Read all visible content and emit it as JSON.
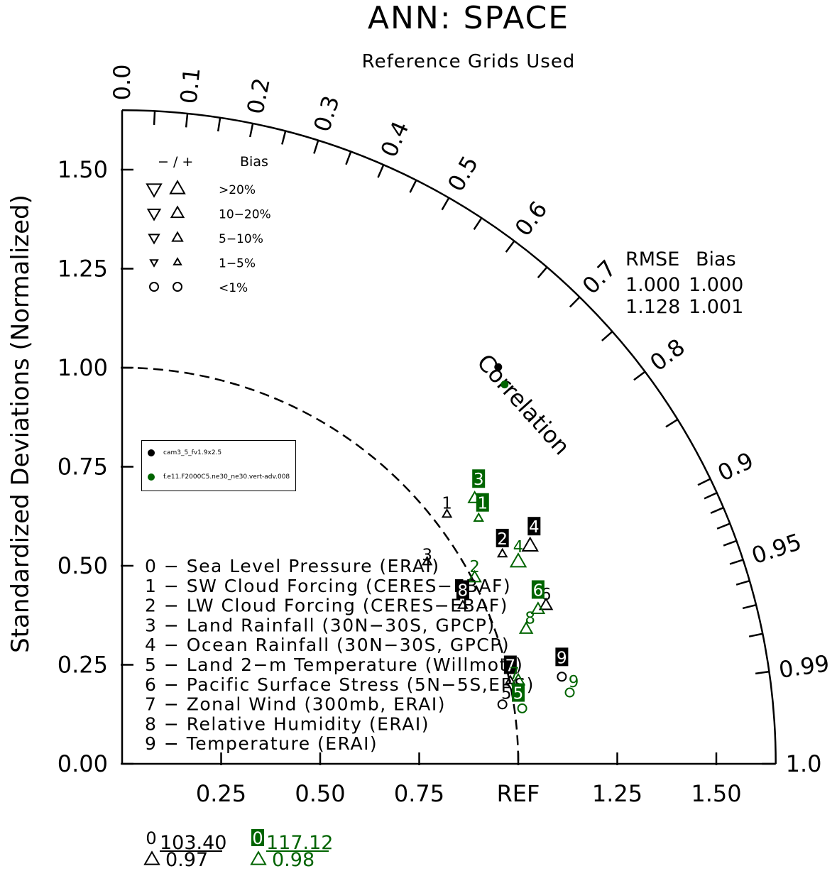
{
  "chart_data": {
    "type": "scatter",
    "title": "ANN: SPACE",
    "subtitle": "Reference Grids Used",
    "ylabel": "Standardized Deviations (Normalized)",
    "arc_label": "Correlation",
    "x_ticks": [
      "0.25",
      "0.50",
      "0.75",
      "REF",
      "1.25",
      "1.50"
    ],
    "y_ticks": [
      "0.00",
      "0.25",
      "0.50",
      "0.75",
      "1.00",
      "1.25",
      "1.50"
    ],
    "corr_ticks": [
      "0.0",
      "0.1",
      "0.2",
      "0.3",
      "0.4",
      "0.5",
      "0.6",
      "0.7",
      "0.8",
      "0.9",
      "0.95",
      "0.99",
      "1.0"
    ],
    "ref_radius": 1.0,
    "max_radius": 1.65,
    "cases": [
      {
        "name": "cam3_5_fv1.9x2.5",
        "color": "#000000"
      },
      {
        "name": "f.e11.F2000C5.ne30_ne30.vert-adv.008",
        "color": "#006400"
      }
    ],
    "stats_header": [
      "RMSE",
      "Bias"
    ],
    "case_stats": [
      {
        "rmse": "1.000",
        "bias": "1.000",
        "corr": 0.688,
        "std": 1.38
      },
      {
        "rmse": "1.128",
        "bias": "1.001",
        "corr": 0.71,
        "std": 1.36
      }
    ],
    "bias_legend": {
      "header": [
        "− / +",
        "Bias"
      ],
      "rows": [
        ">20%",
        "10−20%",
        "5−10%",
        "1−5%",
        "<1%"
      ]
    },
    "variables": [
      "0 − Sea Level Pressure (ERAI)",
      "1 − SW Cloud Forcing (CERES−EBAF)",
      "2 − LW Cloud Forcing (CERES−EBAF)",
      "3 − Land Rainfall (30N−30S, GPCP)",
      "4 − Ocean Rainfall (30N−30S, GPCP)",
      "5 − Land 2−m Temperature (Willmott)",
      "6 − Pacific Surface Stress (5N−5S,ERS)",
      "7 − Zonal Wind (300mb, ERAI)",
      "8 − Relative Humidity (ERAI)",
      "9 − Temperature (ERAI)"
    ],
    "points": [
      {
        "case": 0,
        "var": 1,
        "x": 0.82,
        "y": 0.63,
        "marker": "up",
        "size": "small"
      },
      {
        "case": 0,
        "var": 2,
        "x": 0.96,
        "y": 0.53,
        "marker": "up",
        "size": "small"
      },
      {
        "case": 0,
        "var": 3,
        "x": 0.77,
        "y": 0.51,
        "marker": "up",
        "size": "small"
      },
      {
        "case": 0,
        "var": 4,
        "x": 1.03,
        "y": 0.55,
        "marker": "up",
        "size": "large"
      },
      {
        "case": 0,
        "var": 5,
        "x": 0.96,
        "y": 0.15,
        "marker": "circle",
        "size": "small"
      },
      {
        "case": 0,
        "var": 6,
        "x": 1.07,
        "y": 0.4,
        "marker": "up",
        "size": "medium"
      },
      {
        "case": 0,
        "var": 7,
        "x": 0.98,
        "y": 0.21,
        "marker": "up",
        "size": "small"
      },
      {
        "case": 0,
        "var": 8,
        "x": 0.86,
        "y": 0.4,
        "marker": "up",
        "size": "small"
      },
      {
        "case": 0,
        "var": 9,
        "x": 1.11,
        "y": 0.22,
        "marker": "circle",
        "size": "small"
      },
      {
        "case": 1,
        "var": 1,
        "x": 0.9,
        "y": 0.62,
        "marker": "up",
        "size": "small"
      },
      {
        "case": 1,
        "var": 2,
        "x": 0.89,
        "y": 0.47,
        "marker": "up",
        "size": "medium"
      },
      {
        "case": 1,
        "var": 3,
        "x": 0.89,
        "y": 0.67,
        "marker": "up",
        "size": "medium"
      },
      {
        "case": 1,
        "var": 4,
        "x": 1.0,
        "y": 0.51,
        "marker": "up",
        "size": "large"
      },
      {
        "case": 1,
        "var": 5,
        "x": 1.01,
        "y": 0.14,
        "marker": "circle",
        "size": "small"
      },
      {
        "case": 1,
        "var": 6,
        "x": 1.05,
        "y": 0.39,
        "marker": "up",
        "size": "medium"
      },
      {
        "case": 1,
        "var": 7,
        "x": 1.0,
        "y": 0.21,
        "marker": "up",
        "size": "medium"
      },
      {
        "case": 1,
        "var": 8,
        "x": 1.02,
        "y": 0.34,
        "marker": "up",
        "size": "medium"
      },
      {
        "case": 1,
        "var": 9,
        "x": 1.13,
        "y": 0.18,
        "marker": "circle",
        "size": "small"
      }
    ],
    "number_labels": [
      {
        "case": 0,
        "var": 1,
        "x": 0.82,
        "y": 0.66,
        "boxed": false
      },
      {
        "case": 0,
        "var": 2,
        "x": 0.96,
        "y": 0.57,
        "boxed": true
      },
      {
        "case": 0,
        "var": 3,
        "x": 0.77,
        "y": 0.53,
        "boxed": false
      },
      {
        "case": 0,
        "var": 4,
        "x": 1.04,
        "y": 0.6,
        "boxed": true
      },
      {
        "case": 0,
        "var": 5,
        "x": 0.97,
        "y": 0.18,
        "boxed": false
      },
      {
        "case": 0,
        "var": 6,
        "x": 1.07,
        "y": 0.43,
        "boxed": false
      },
      {
        "case": 0,
        "var": 7,
        "x": 0.98,
        "y": 0.25,
        "boxed": true
      },
      {
        "case": 0,
        "var": 8,
        "x": 0.86,
        "y": 0.44,
        "boxed": true
      },
      {
        "case": 0,
        "var": 9,
        "x": 1.11,
        "y": 0.27,
        "boxed": true
      },
      {
        "case": 1,
        "var": 1,
        "x": 0.91,
        "y": 0.66,
        "boxed": true
      },
      {
        "case": 1,
        "var": 2,
        "x": 0.89,
        "y": 0.5,
        "boxed": false
      },
      {
        "case": 1,
        "var": 3,
        "x": 0.9,
        "y": 0.72,
        "boxed": true
      },
      {
        "case": 1,
        "var": 4,
        "x": 1.0,
        "y": 0.55,
        "boxed": false
      },
      {
        "case": 1,
        "var": 5,
        "x": 1.0,
        "y": 0.18,
        "boxed": true
      },
      {
        "case": 1,
        "var": 6,
        "x": 1.05,
        "y": 0.44,
        "boxed": true
      },
      {
        "case": 1,
        "var": 7,
        "x": 0.99,
        "y": 0.23,
        "boxed": false
      },
      {
        "case": 1,
        "var": 8,
        "x": 1.03,
        "y": 0.37,
        "boxed": false
      },
      {
        "case": 1,
        "var": 9,
        "x": 1.14,
        "y": 0.21,
        "boxed": false
      }
    ],
    "outliers": [
      {
        "case": 0,
        "var": "0",
        "rmse": "103.40",
        "corr": "0.97"
      },
      {
        "case": 1,
        "var": "0",
        "rmse": "117.12",
        "corr": "0.98"
      }
    ]
  }
}
